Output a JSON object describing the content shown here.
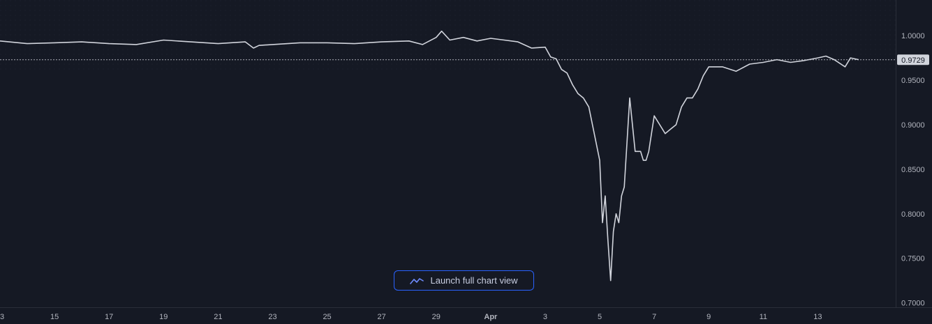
{
  "launch_button": {
    "label": "Launch full chart view",
    "icon": "line-chart-icon"
  },
  "last_price_label": "0.9729",
  "colors": {
    "background": "#151924",
    "line": "#d1d4dc",
    "grid_dot": "#2a2e39",
    "axis_text": "#b2b5be",
    "button_border": "#2962ff",
    "price_tag_bg": "#d1d4dc"
  },
  "chart_data": {
    "type": "line",
    "title": "",
    "xlabel": "",
    "ylabel": "",
    "ylim": [
      0.695,
      1.04
    ],
    "grid": "dotted",
    "y_axis_position": "right",
    "last_value": 0.9729,
    "x_ticks": [
      "3",
      "15",
      "17",
      "19",
      "21",
      "23",
      "25",
      "27",
      "29",
      "Apr",
      "3",
      "5",
      "7",
      "9",
      "11",
      "13"
    ],
    "y_ticks": [
      "1.0000",
      "0.9500",
      "0.9000",
      "0.8500",
      "0.8000",
      "0.7500",
      "0.7000"
    ],
    "series": [
      {
        "x": [
          13,
          14,
          15,
          16,
          17,
          18,
          19,
          20,
          21,
          22,
          22.3,
          22.5,
          23,
          24,
          25,
          26,
          27,
          28,
          28.5,
          29,
          29.2,
          29.5,
          30,
          30.5,
          31,
          31.5,
          32,
          32.5,
          33,
          33.2,
          33.4,
          33.6,
          33.8,
          34,
          34.2,
          34.4,
          34.6,
          34.8,
          35,
          35.1,
          35.2,
          35.3,
          35.4,
          35.5,
          35.6,
          35.7,
          35.8,
          35.9,
          36,
          36.1,
          36.2,
          36.3,
          36.4,
          36.5,
          36.6,
          36.7,
          36.8,
          37,
          37.2,
          37.4,
          37.6,
          37.8,
          38,
          38.2,
          38.4,
          38.6,
          38.8,
          39,
          39.5,
          40,
          40.5,
          41,
          41.5,
          42,
          42.5,
          43,
          43.3,
          43.6,
          44,
          44.2,
          44.5
        ],
        "values": [
          0.994,
          0.991,
          0.992,
          0.993,
          0.991,
          0.99,
          0.995,
          0.993,
          0.991,
          0.993,
          0.986,
          0.989,
          0.99,
          0.992,
          0.992,
          0.991,
          0.993,
          0.994,
          0.99,
          0.998,
          1.005,
          0.995,
          0.998,
          0.994,
          0.997,
          0.995,
          0.993,
          0.986,
          0.987,
          0.976,
          0.974,
          0.962,
          0.958,
          0.945,
          0.935,
          0.93,
          0.92,
          0.89,
          0.86,
          0.79,
          0.82,
          0.77,
          0.725,
          0.78,
          0.8,
          0.79,
          0.82,
          0.83,
          0.88,
          0.93,
          0.9,
          0.87,
          0.87,
          0.87,
          0.86,
          0.86,
          0.87,
          0.91,
          0.9,
          0.89,
          0.895,
          0.9,
          0.92,
          0.93,
          0.93,
          0.94,
          0.955,
          0.965,
          0.965,
          0.96,
          0.968,
          0.97,
          0.973,
          0.97,
          0.972,
          0.975,
          0.977,
          0.973,
          0.965,
          0.975,
          0.973
        ]
      }
    ]
  }
}
